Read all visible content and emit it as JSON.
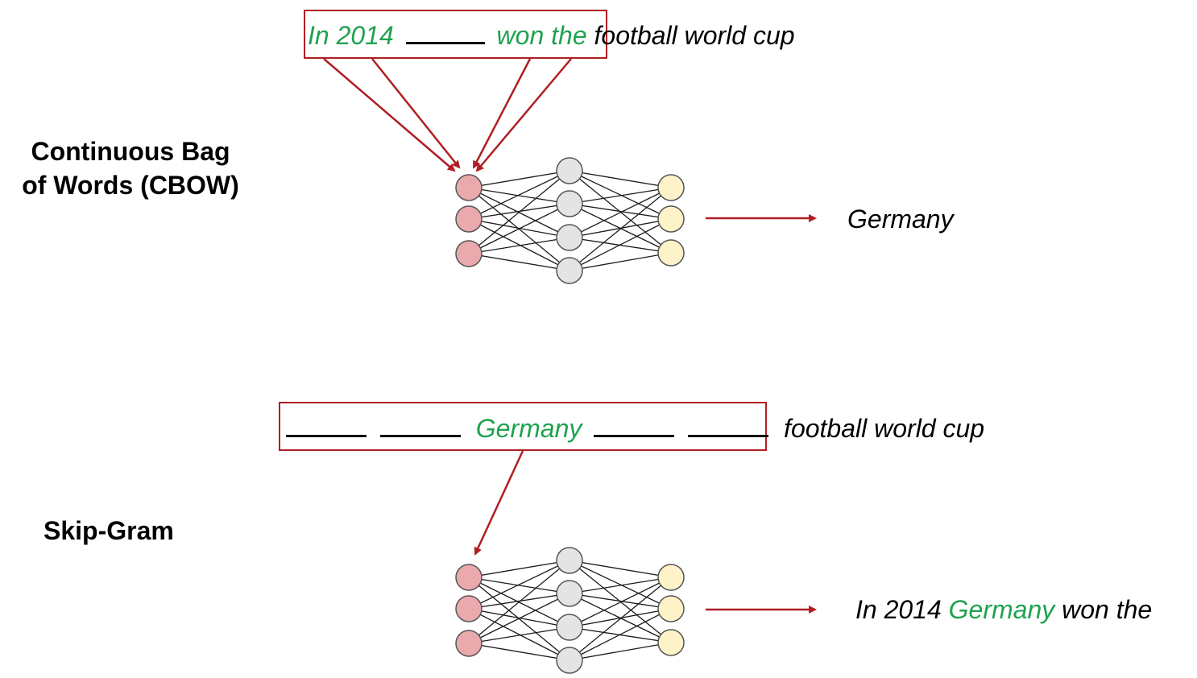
{
  "cbow": {
    "label_line1": "Continuous Bag",
    "label_line2": "of Words (CBOW)",
    "context_before": "In 2014",
    "context_after": "won the",
    "rest": "football world cup",
    "output": "Germany"
  },
  "skipgram": {
    "label": "Skip-Gram",
    "center": "Germany",
    "rest": "football world cup",
    "output_before": "In 2014",
    "output_center": "Germany",
    "output_after": "won the"
  },
  "colors": {
    "context_green": "#1fa250",
    "arrow_red": "#b01e23",
    "input_node": "#eaa9ac",
    "hidden_node": "#e4e4e4",
    "output_node": "#fdf2c8"
  }
}
